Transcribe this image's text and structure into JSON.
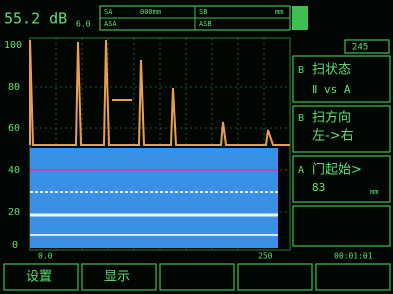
{
  "header": {
    "gain": "55.2 dB",
    "step": "6.0",
    "status": [
      [
        "SA",
        "000mm",
        "SB",
        "mm"
      ],
      [
        "ASA",
        "ASB"
      ]
    ]
  },
  "plot": {
    "y_labels": [
      "100",
      "80",
      "60",
      "40",
      "20",
      "0"
    ],
    "x_start": "0.0",
    "x_end": "250",
    "time": "00:01:01"
  },
  "menu": {
    "range": "245",
    "items": [
      {
        "key": "B",
        "label": "扫状态",
        "value": "Ⅱ vs A"
      },
      {
        "key": "B",
        "label": "扫方向",
        "value": "左->右"
      },
      {
        "key": "A",
        "label": "门起始>",
        "value": "83",
        "unit": "mm"
      }
    ]
  },
  "buttons": [
    "设置",
    "显示"
  ]
}
